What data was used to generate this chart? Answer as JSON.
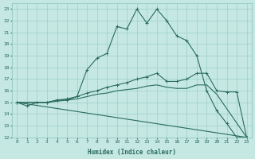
{
  "xlabel": "Humidex (Indice chaleur)",
  "xlim": [
    -0.5,
    23.5
  ],
  "ylim": [
    12,
    23.5
  ],
  "yticks": [
    12,
    13,
    14,
    15,
    16,
    17,
    18,
    19,
    20,
    21,
    22,
    23
  ],
  "xticks": [
    0,
    1,
    2,
    3,
    4,
    5,
    6,
    7,
    8,
    9,
    10,
    11,
    12,
    13,
    14,
    15,
    16,
    17,
    18,
    19,
    20,
    21,
    22,
    23
  ],
  "bg_color": "#c5e8e3",
  "line_color": "#2a6b5e",
  "grid_color": "#9ecfc7",
  "lines": [
    {
      "x": [
        0,
        1,
        2,
        3,
        4,
        5,
        6,
        7,
        8,
        9,
        10,
        11,
        12,
        13,
        14,
        15,
        16,
        17,
        18,
        19,
        20,
        21,
        22,
        23
      ],
      "y": [
        15.0,
        14.7,
        15.0,
        15.0,
        15.2,
        15.2,
        15.5,
        17.8,
        18.8,
        19.2,
        21.5,
        21.3,
        23.0,
        21.8,
        23.0,
        22.0,
        20.7,
        20.3,
        19.0,
        16.0,
        14.3,
        13.2,
        12.0,
        12.0
      ],
      "marker": true
    },
    {
      "x": [
        0,
        3,
        4,
        5,
        6,
        7,
        8,
        9,
        10,
        11,
        12,
        13,
        14,
        15,
        16,
        17,
        18,
        19,
        20,
        21,
        22,
        23
      ],
      "y": [
        15.0,
        15.0,
        15.2,
        15.3,
        15.5,
        15.8,
        16.0,
        16.3,
        16.5,
        16.7,
        17.0,
        17.2,
        17.5,
        16.8,
        16.8,
        17.0,
        17.5,
        17.5,
        16.0,
        15.9,
        15.9,
        12.0
      ],
      "marker": true
    },
    {
      "x": [
        0,
        3,
        4,
        5,
        6,
        7,
        8,
        9,
        10,
        11,
        12,
        13,
        14,
        15,
        16,
        17,
        18,
        19,
        20,
        23
      ],
      "y": [
        15.0,
        15.0,
        15.1,
        15.2,
        15.3,
        15.5,
        15.7,
        15.8,
        16.0,
        16.1,
        16.2,
        16.4,
        16.5,
        16.3,
        16.2,
        16.2,
        16.5,
        16.5,
        15.7,
        12.0
      ],
      "marker": false
    },
    {
      "x": [
        0,
        23
      ],
      "y": [
        15.0,
        12.0
      ],
      "marker": false
    }
  ]
}
